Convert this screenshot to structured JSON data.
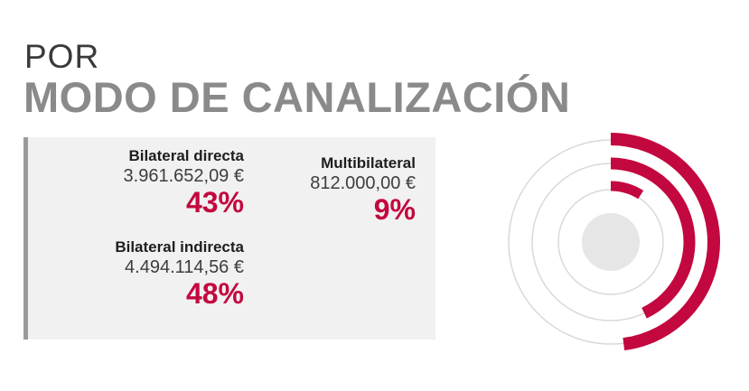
{
  "header": {
    "pre": "POR",
    "title": "MODO DE CANALIZACIÓN"
  },
  "colors": {
    "accent": "#c3073f",
    "ring": "#d9d9d9",
    "center": "#e6e6e6",
    "panel": "#f1f1f1"
  },
  "chart_data": {
    "type": "radial-bar",
    "series": [
      {
        "label": "Bilateral directa",
        "amount": "3.961.652,09 €",
        "value": 3961652.09,
        "percent": 43,
        "percent_label": "43%"
      },
      {
        "label": "Multibilateral",
        "amount": "812.000,00 €",
        "value": 812000.0,
        "percent": 9,
        "percent_label": "9%"
      },
      {
        "label": "Bilateral indirecta",
        "amount": "4.494.114,56 €",
        "value": 4494114.56,
        "percent": 48,
        "percent_label": "48%"
      }
    ]
  }
}
